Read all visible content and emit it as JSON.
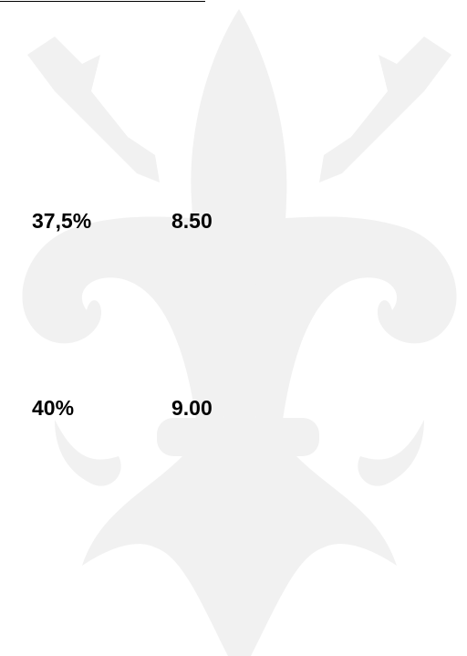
{
  "table": {
    "rows": [
      [
        "37,5%",
        "8.50"
      ],
      [
        "40%",
        "9.00"
      ]
    ]
  }
}
